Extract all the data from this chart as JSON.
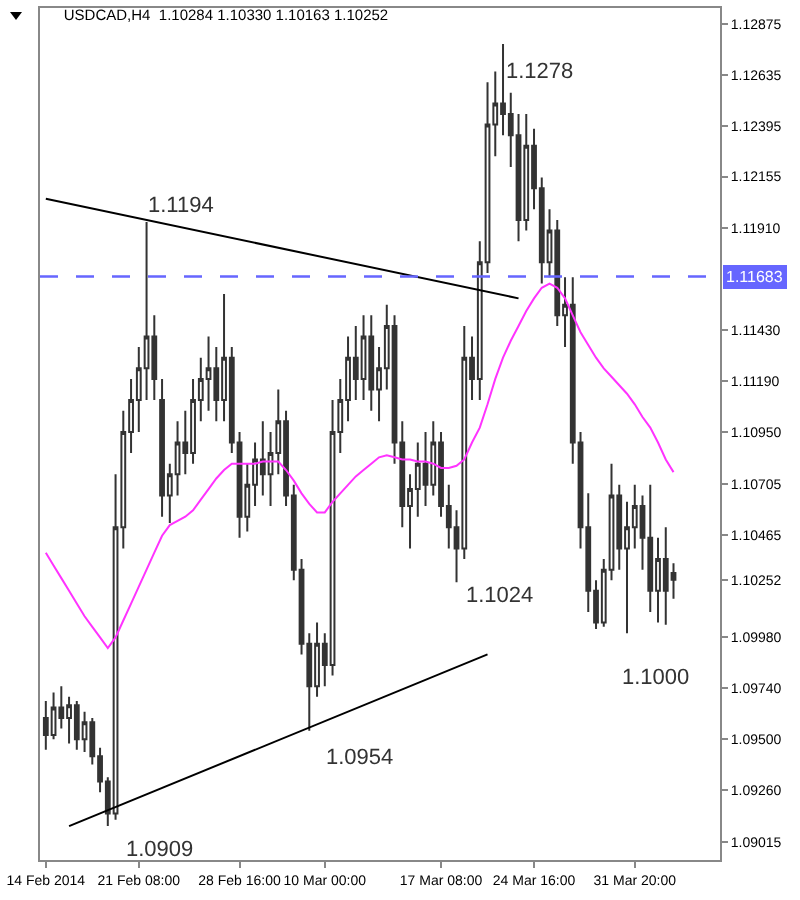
{
  "chart_data": {
    "type": "candlestick",
    "title": "USDCAD,H4  1.10284 1.10330 1.10163 1.10252",
    "categories": [
      "14 Feb 2014",
      null,
      null,
      null,
      null,
      null,
      null,
      null,
      null,
      null,
      null,
      null,
      "21 Feb 08:00",
      null,
      null,
      null,
      null,
      null,
      null,
      null,
      null,
      null,
      null,
      null,
      null,
      "28 Feb 16:00",
      null,
      null,
      null,
      null,
      null,
      null,
      null,
      null,
      null,
      null,
      "10 Mar 00:00",
      null,
      null,
      null,
      null,
      null,
      null,
      null,
      null,
      null,
      null,
      null,
      null,
      null,
      null,
      "17 Mar 08:00",
      null,
      null,
      null,
      null,
      null,
      null,
      null,
      null,
      null,
      null,
      null,
      "24 Mar 16:00",
      null,
      null,
      null,
      null,
      null,
      null,
      null,
      null,
      null,
      null,
      null,
      null,
      "31 Mar 20:00",
      null,
      null,
      null,
      null,
      null
    ],
    "ohlc": [
      [
        1.096,
        1.0968,
        1.0945,
        1.0952
      ],
      [
        1.0952,
        1.0972,
        1.095,
        1.0965
      ],
      [
        1.0965,
        1.0975,
        1.0955,
        1.096
      ],
      [
        1.096,
        1.097,
        1.0948,
        1.0966
      ],
      [
        1.0966,
        1.0968,
        1.0945,
        1.095
      ],
      [
        1.095,
        1.0963,
        1.0944,
        1.0958
      ],
      [
        1.0958,
        1.096,
        1.0938,
        1.0942
      ],
      [
        1.0942,
        1.0946,
        1.0925,
        1.093
      ],
      [
        1.093,
        1.0932,
        1.0909,
        1.0915
      ],
      [
        1.0915,
        1.1075,
        1.0912,
        1.105
      ],
      [
        1.105,
        1.1105,
        1.104,
        1.1095
      ],
      [
        1.1095,
        1.112,
        1.1085,
        1.111
      ],
      [
        1.111,
        1.1135,
        1.1095,
        1.1125
      ],
      [
        1.1125,
        1.1194,
        1.111,
        1.114
      ],
      [
        1.114,
        1.115,
        1.111,
        1.112
      ],
      [
        1.111,
        1.112,
        1.1055,
        1.1065
      ],
      [
        1.1065,
        1.108,
        1.1052,
        1.1075
      ],
      [
        1.1075,
        1.11,
        1.1065,
        1.109
      ],
      [
        1.109,
        1.1105,
        1.1075,
        1.1085
      ],
      [
        1.1085,
        1.112,
        1.108,
        1.111
      ],
      [
        1.111,
        1.113,
        1.11,
        1.112
      ],
      [
        1.112,
        1.114,
        1.1105,
        1.1125
      ],
      [
        1.1125,
        1.1135,
        1.11,
        1.111
      ],
      [
        1.111,
        1.116,
        1.11,
        1.113
      ],
      [
        1.113,
        1.1135,
        1.1085,
        1.109
      ],
      [
        1.109,
        1.1095,
        1.1045,
        1.1055
      ],
      [
        1.1055,
        1.108,
        1.1048,
        1.107
      ],
      [
        1.107,
        1.109,
        1.106,
        1.1082
      ],
      [
        1.1082,
        1.11,
        1.1065,
        1.1075
      ],
      [
        1.1075,
        1.1095,
        1.106,
        1.1085
      ],
      [
        1.1085,
        1.1115,
        1.1075,
        1.11
      ],
      [
        1.11,
        1.1105,
        1.106,
        1.1065
      ],
      [
        1.1065,
        1.107,
        1.1025,
        1.103
      ],
      [
        1.103,
        1.1035,
        1.099,
        1.0995
      ],
      [
        1.0995,
        1.1,
        1.0954,
        1.0975
      ],
      [
        1.0975,
        1.1005,
        1.097,
        1.0995
      ],
      [
        1.0995,
        1.1,
        1.0975,
        1.0985
      ],
      [
        1.0985,
        1.111,
        1.098,
        1.1095
      ],
      [
        1.1095,
        1.112,
        1.1085,
        1.111
      ],
      [
        1.111,
        1.114,
        1.11,
        1.113
      ],
      [
        1.113,
        1.1145,
        1.111,
        1.112
      ],
      [
        1.112,
        1.115,
        1.111,
        1.114
      ],
      [
        1.114,
        1.115,
        1.1105,
        1.1115
      ],
      [
        1.1115,
        1.1135,
        1.11,
        1.1125
      ],
      [
        1.1125,
        1.1155,
        1.1115,
        1.1145
      ],
      [
        1.1145,
        1.115,
        1.108,
        1.109
      ],
      [
        1.109,
        1.11,
        1.105,
        1.106
      ],
      [
        1.106,
        1.1075,
        1.104,
        1.1068
      ],
      [
        1.1068,
        1.109,
        1.1055,
        1.108
      ],
      [
        1.108,
        1.1095,
        1.106,
        1.107
      ],
      [
        1.107,
        1.11,
        1.1065,
        1.109
      ],
      [
        1.109,
        1.1095,
        1.1055,
        1.106
      ],
      [
        1.106,
        1.107,
        1.104,
        1.105
      ],
      [
        1.105,
        1.1058,
        1.1024,
        1.104
      ],
      [
        1.104,
        1.1145,
        1.1035,
        1.113
      ],
      [
        1.113,
        1.114,
        1.111,
        1.112
      ],
      [
        1.112,
        1.1185,
        1.111,
        1.1175
      ],
      [
        1.1175,
        1.126,
        1.117,
        1.124
      ],
      [
        1.124,
        1.1265,
        1.1225,
        1.125
      ],
      [
        1.125,
        1.1278,
        1.1235,
        1.1245
      ],
      [
        1.1245,
        1.1255,
        1.122,
        1.1235
      ],
      [
        1.1235,
        1.1245,
        1.1185,
        1.1195
      ],
      [
        1.1195,
        1.1245,
        1.119,
        1.123
      ],
      [
        1.123,
        1.1238,
        1.12,
        1.121
      ],
      [
        1.121,
        1.1215,
        1.1165,
        1.1175
      ],
      [
        1.1175,
        1.12,
        1.1168,
        1.119
      ],
      [
        1.119,
        1.1195,
        1.1145,
        1.115
      ],
      [
        1.115,
        1.1168,
        1.1135,
        1.1155
      ],
      [
        1.1155,
        1.1168,
        1.108,
        1.109
      ],
      [
        1.109,
        1.1095,
        1.104,
        1.105
      ],
      [
        1.105,
        1.1066,
        1.101,
        1.102
      ],
      [
        1.102,
        1.1025,
        1.1002,
        1.1005
      ],
      [
        1.1005,
        1.1035,
        1.1003,
        1.103
      ],
      [
        1.103,
        1.108,
        1.1025,
        1.1065
      ],
      [
        1.1065,
        1.107,
        1.103,
        1.104
      ],
      [
        1.104,
        1.1062,
        1.1,
        1.105
      ],
      [
        1.105,
        1.107,
        1.104,
        1.106
      ],
      [
        1.106,
        1.1065,
        1.103,
        1.1045
      ],
      [
        1.1045,
        1.107,
        1.101,
        1.102
      ],
      [
        1.102,
        1.1045,
        1.1005,
        1.1035
      ],
      [
        1.1035,
        1.105,
        1.1004,
        1.102
      ],
      [
        1.10284,
        1.1033,
        1.10163,
        1.10252
      ]
    ],
    "color": "#333333",
    "series": [
      {
        "type": "line",
        "color": "#ff33ff",
        "values": [
          1.1038,
          1.1032,
          1.1026,
          1.102,
          1.1014,
          1.1008,
          1.1003,
          1.0998,
          1.0993,
          1.0998,
          1.1006,
          1.1014,
          1.1022,
          1.103,
          1.1038,
          1.1046,
          1.1051,
          1.1053,
          1.1055,
          1.1058,
          1.1063,
          1.1068,
          1.1073,
          1.1077,
          1.108,
          1.108,
          1.108,
          1.108,
          1.1081,
          1.1081,
          1.1081,
          1.1077,
          1.1072,
          1.1066,
          1.1061,
          1.1057,
          1.1057,
          1.1062,
          1.1066,
          1.107,
          1.1074,
          1.1077,
          1.108,
          1.1083,
          1.1084,
          1.1083,
          1.1082,
          1.1082,
          1.1081,
          1.1081,
          1.108,
          1.1078,
          1.1078,
          1.1079,
          1.1082,
          1.109,
          1.1097,
          1.1108,
          1.112,
          1.113,
          1.1138,
          1.1145,
          1.1152,
          1.1158,
          1.1163,
          1.1165,
          1.1163,
          1.1158,
          1.115,
          1.1142,
          1.1136,
          1.113,
          1.1125,
          1.1121,
          1.1117,
          1.1113,
          1.1108,
          1.1102,
          1.1097,
          1.109,
          1.1082,
          1.1076
        ]
      },
      {
        "type": "line",
        "color": "#000000",
        "values": [
          1.1205,
          null,
          null,
          null,
          null,
          null,
          null,
          null,
          null,
          null,
          null,
          null,
          null,
          null,
          null,
          null,
          null,
          null,
          null,
          null,
          null,
          null,
          null,
          null,
          null,
          null,
          null,
          null,
          null,
          null,
          null,
          null,
          null,
          null,
          null,
          null,
          null,
          null,
          null,
          null,
          null,
          null,
          null,
          null,
          null,
          null,
          null,
          null,
          null,
          null,
          null,
          null,
          null,
          null,
          null,
          null,
          null,
          null,
          null,
          null,
          null,
          1.1158,
          null,
          null,
          null,
          null,
          null,
          null,
          null,
          null,
          null,
          null,
          null,
          null,
          null,
          null,
          null,
          null,
          null,
          null,
          null,
          null
        ]
      },
      {
        "type": "line",
        "color": "#000000",
        "values": [
          null,
          null,
          null,
          1.0909,
          null,
          null,
          null,
          null,
          null,
          null,
          null,
          null,
          null,
          null,
          null,
          null,
          null,
          null,
          null,
          null,
          null,
          null,
          null,
          null,
          null,
          null,
          null,
          null,
          null,
          null,
          null,
          null,
          null,
          null,
          null,
          null,
          null,
          null,
          null,
          null,
          null,
          null,
          null,
          null,
          null,
          null,
          null,
          null,
          null,
          null,
          null,
          null,
          null,
          null,
          null,
          null,
          null,
          1.099,
          null,
          null,
          null,
          null,
          null,
          null,
          null,
          null,
          null,
          null,
          null,
          null,
          null,
          null,
          null,
          null,
          null,
          null,
          null,
          null,
          null,
          null,
          null,
          null
        ]
      }
    ],
    "ylim": [
      1.0893,
      1.1295
    ],
    "yticks": [
      1.12875,
      1.12635,
      1.12395,
      1.12155,
      {
        "value": 1.1191,
        "label": "1.11910"
      },
      {
        "value": 1.1143,
        "label": "1.11430"
      },
      {
        "value": 1.1119,
        "label": "1.11190"
      },
      {
        "value": 1.1095,
        "label": "1.10950"
      },
      1.10705,
      1.10465,
      1.10252,
      {
        "value": 1.0998,
        "label": "1.09980"
      },
      {
        "value": 1.0974,
        "label": "1.09740"
      },
      {
        "value": 1.095,
        "label": "1.09500"
      },
      {
        "value": 1.0926,
        "label": "1.09260"
      },
      1.09015
    ],
    "ref_lines": [
      {
        "axis": "y",
        "value": 1.11683,
        "label": "1.11683",
        "color": "#6666ff",
        "line_style": "dashed"
      }
    ],
    "annotations": [
      "1.1194",
      "1.1278",
      "1.0909",
      "1.0954",
      "1.1024",
      "1.1000"
    ],
    "grid": false
  }
}
